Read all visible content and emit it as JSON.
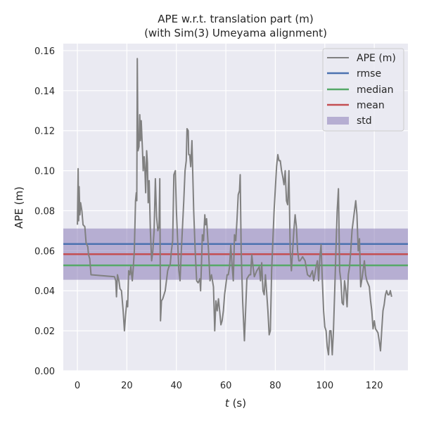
{
  "chart_data": {
    "type": "line",
    "title": "APE w.r.t. translation part (m)",
    "subtitle": "(with Sim(3) Umeyama alignment)",
    "xlabel_var": "t",
    "xlabel_unit": " (s)",
    "ylabel": "APE (m)",
    "xlim": [
      -5.7,
      133.6
    ],
    "ylim": [
      0,
      0.1635
    ],
    "xticks": [
      0,
      20,
      40,
      60,
      80,
      100,
      120
    ],
    "xtick_labels": [
      "0",
      "20",
      "40",
      "60",
      "80",
      "100",
      "120"
    ],
    "yticks": [
      0,
      0.02,
      0.04,
      0.06,
      0.08,
      0.1,
      0.12,
      0.14,
      0.16
    ],
    "ytick_labels": [
      "0.00",
      "0.02",
      "0.04",
      "0.06",
      "0.08",
      "0.10",
      "0.12",
      "0.14",
      "0.16"
    ],
    "grid": true,
    "legend_position": "top-right",
    "legend": [
      "APE (m)",
      "rmse",
      "median",
      "mean",
      "std"
    ],
    "stats": {
      "rmse": 0.0634,
      "median": 0.0527,
      "mean": 0.0583,
      "std": 0.0128
    },
    "colors": {
      "ape": "#808080",
      "rmse": "#4C72B0",
      "median": "#55A868",
      "mean": "#C44E52",
      "std": "#8172B2",
      "background": "#EAEAF2"
    },
    "series": [
      {
        "name": "APE (m)",
        "points": [
          [
            0,
            0.073
          ],
          [
            0.3,
            0.101
          ],
          [
            0.5,
            0.075
          ],
          [
            0.7,
            0.092
          ],
          [
            1,
            0.078
          ],
          [
            1.3,
            0.084
          ],
          [
            1.8,
            0.08
          ],
          [
            2.3,
            0.073
          ],
          [
            3,
            0.072
          ],
          [
            3.5,
            0.064
          ],
          [
            4.2,
            0.062
          ],
          [
            4.5,
            0.058
          ],
          [
            5,
            0.056
          ],
          [
            5.5,
            0.048
          ],
          [
            15,
            0.047
          ],
          [
            15.5,
            0.045
          ],
          [
            15.8,
            0.037
          ],
          [
            16.2,
            0.048
          ],
          [
            16.8,
            0.045
          ],
          [
            17.2,
            0.041
          ],
          [
            17.8,
            0.04
          ],
          [
            18.5,
            0.03
          ],
          [
            19,
            0.02
          ],
          [
            19.5,
            0.028
          ],
          [
            20,
            0.035
          ],
          [
            20.3,
            0.032
          ],
          [
            20.7,
            0.05
          ],
          [
            21.2,
            0.048
          ],
          [
            21.6,
            0.052
          ],
          [
            22.2,
            0.045
          ],
          [
            22.5,
            0.05
          ],
          [
            23,
            0.06
          ],
          [
            23.5,
            0.085
          ],
          [
            23.8,
            0.089
          ],
          [
            24,
            0.085
          ],
          [
            24.2,
            0.156
          ],
          [
            24.5,
            0.11
          ],
          [
            24.9,
            0.112
          ],
          [
            25.2,
            0.128
          ],
          [
            25.5,
            0.115
          ],
          [
            25.8,
            0.125
          ],
          [
            26.3,
            0.11
          ],
          [
            26.6,
            0.1
          ],
          [
            27,
            0.107
          ],
          [
            27.3,
            0.1
          ],
          [
            27.6,
            0.089
          ],
          [
            28,
            0.11
          ],
          [
            28.3,
            0.104
          ],
          [
            28.6,
            0.084
          ],
          [
            29,
            0.095
          ],
          [
            29.5,
            0.07
          ],
          [
            30,
            0.055
          ],
          [
            30.5,
            0.06
          ],
          [
            31,
            0.07
          ],
          [
            31.5,
            0.096
          ],
          [
            32,
            0.077
          ],
          [
            32.5,
            0.07
          ],
          [
            33,
            0.072
          ],
          [
            33.3,
            0.096
          ],
          [
            33.6,
            0.025
          ],
          [
            34,
            0.035
          ],
          [
            34.5,
            0.036
          ],
          [
            35.5,
            0.04
          ],
          [
            36.5,
            0.05
          ],
          [
            37,
            0.052
          ],
          [
            37.5,
            0.053
          ],
          [
            38,
            0.06
          ],
          [
            38.5,
            0.065
          ],
          [
            39,
            0.098
          ],
          [
            39.6,
            0.1
          ],
          [
            40,
            0.08
          ],
          [
            41,
            0.05
          ],
          [
            41.5,
            0.045
          ],
          [
            42,
            0.06
          ],
          [
            43,
            0.085
          ],
          [
            43.5,
            0.1
          ],
          [
            44,
            0.105
          ],
          [
            44.3,
            0.121
          ],
          [
            44.8,
            0.12
          ],
          [
            45,
            0.108
          ],
          [
            45.4,
            0.108
          ],
          [
            45.8,
            0.102
          ],
          [
            46.3,
            0.115
          ],
          [
            47,
            0.08
          ],
          [
            47.6,
            0.06
          ],
          [
            48.2,
            0.045
          ],
          [
            48.8,
            0.044
          ],
          [
            49.5,
            0.046
          ],
          [
            49.8,
            0.04
          ],
          [
            50.2,
            0.055
          ],
          [
            50.5,
            0.068
          ],
          [
            51,
            0.065
          ],
          [
            51.5,
            0.078
          ],
          [
            51.8,
            0.073
          ],
          [
            52.2,
            0.076
          ],
          [
            53,
            0.06
          ],
          [
            53.6,
            0.045
          ],
          [
            54.2,
            0.048
          ],
          [
            55,
            0.042
          ],
          [
            55.5,
            0.02
          ],
          [
            56,
            0.035
          ],
          [
            56.5,
            0.03
          ],
          [
            57,
            0.036
          ],
          [
            57.5,
            0.03
          ],
          [
            58,
            0.023
          ],
          [
            58.5,
            0.025
          ],
          [
            59,
            0.03
          ],
          [
            59.5,
            0.038
          ],
          [
            60,
            0.043
          ],
          [
            60.5,
            0.048
          ],
          [
            61,
            0.048
          ],
          [
            61.5,
            0.052
          ],
          [
            62,
            0.063
          ],
          [
            62.5,
            0.053
          ],
          [
            63,
            0.045
          ],
          [
            63.5,
            0.068
          ],
          [
            64,
            0.065
          ],
          [
            64.5,
            0.075
          ],
          [
            65,
            0.088
          ],
          [
            65.5,
            0.09
          ],
          [
            65.8,
            0.098
          ],
          [
            66.2,
            0.06
          ],
          [
            66.8,
            0.035
          ],
          [
            67.5,
            0.015
          ],
          [
            68,
            0.03
          ],
          [
            68.5,
            0.046
          ],
          [
            69,
            0.047
          ],
          [
            69.5,
            0.048
          ],
          [
            70,
            0.048
          ],
          [
            70.5,
            0.058
          ],
          [
            71,
            0.052
          ],
          [
            71.5,
            0.047
          ],
          [
            72.5,
            0.05
          ],
          [
            73.5,
            0.052
          ],
          [
            74,
            0.045
          ],
          [
            74.5,
            0.054
          ],
          [
            75,
            0.04
          ],
          [
            75.5,
            0.038
          ],
          [
            76,
            0.048
          ],
          [
            77,
            0.03
          ],
          [
            77.5,
            0.018
          ],
          [
            78,
            0.02
          ],
          [
            78.5,
            0.05
          ],
          [
            79.5,
            0.08
          ],
          [
            80.5,
            0.102
          ],
          [
            81,
            0.108
          ],
          [
            81.5,
            0.105
          ],
          [
            82,
            0.105
          ],
          [
            82.5,
            0.1
          ],
          [
            83,
            0.097
          ],
          [
            83.5,
            0.093
          ],
          [
            84,
            0.1
          ],
          [
            84.5,
            0.085
          ],
          [
            85,
            0.083
          ],
          [
            85.5,
            0.1
          ],
          [
            86,
            0.06
          ],
          [
            86.5,
            0.05
          ],
          [
            87.5,
            0.07
          ],
          [
            88,
            0.078
          ],
          [
            88.5,
            0.072
          ],
          [
            89,
            0.06
          ],
          [
            89.5,
            0.055
          ],
          [
            90,
            0.055
          ],
          [
            91,
            0.057
          ],
          [
            92,
            0.055
          ],
          [
            93,
            0.048
          ],
          [
            94,
            0.047
          ],
          [
            95,
            0.05
          ],
          [
            95.5,
            0.045
          ],
          [
            96.5,
            0.052
          ],
          [
            97,
            0.055
          ],
          [
            97.5,
            0.045
          ],
          [
            98,
            0.057
          ],
          [
            98.5,
            0.063
          ],
          [
            99,
            0.045
          ],
          [
            99.5,
            0.03
          ],
          [
            100,
            0.022
          ],
          [
            100.5,
            0.02
          ],
          [
            101,
            0.012
          ],
          [
            101.5,
            0.008
          ],
          [
            102,
            0.02
          ],
          [
            102.5,
            0.02
          ],
          [
            103,
            0.008
          ],
          [
            103.5,
            0.02
          ],
          [
            104,
            0.04
          ],
          [
            104.5,
            0.06
          ],
          [
            105,
            0.08
          ],
          [
            105.5,
            0.091
          ],
          [
            106,
            0.05
          ],
          [
            106.5,
            0.045
          ],
          [
            107,
            0.034
          ],
          [
            107.5,
            0.033
          ],
          [
            108,
            0.045
          ],
          [
            108.5,
            0.04
          ],
          [
            109,
            0.032
          ],
          [
            109.5,
            0.048
          ],
          [
            110,
            0.052
          ],
          [
            110.5,
            0.06
          ],
          [
            111,
            0.07
          ],
          [
            112,
            0.08
          ],
          [
            112.5,
            0.085
          ],
          [
            113,
            0.078
          ],
          [
            113.5,
            0.06
          ],
          [
            114,
            0.066
          ],
          [
            114.5,
            0.042
          ],
          [
            115,
            0.046
          ],
          [
            116,
            0.055
          ],
          [
            116.5,
            0.048
          ],
          [
            117,
            0.045
          ],
          [
            118,
            0.042
          ],
          [
            118.5,
            0.035
          ],
          [
            119,
            0.03
          ],
          [
            119.5,
            0.021
          ],
          [
            120,
            0.025
          ],
          [
            120.5,
            0.021
          ],
          [
            121,
            0.02
          ],
          [
            121.5,
            0.019
          ],
          [
            122,
            0.015
          ],
          [
            122.5,
            0.01
          ],
          [
            123,
            0.02
          ],
          [
            123.5,
            0.03
          ],
          [
            124,
            0.033
          ],
          [
            124.5,
            0.038
          ],
          [
            125,
            0.04
          ],
          [
            125.5,
            0.038
          ],
          [
            126,
            0.038
          ],
          [
            126.5,
            0.04
          ],
          [
            127,
            0.037
          ]
        ]
      }
    ]
  }
}
